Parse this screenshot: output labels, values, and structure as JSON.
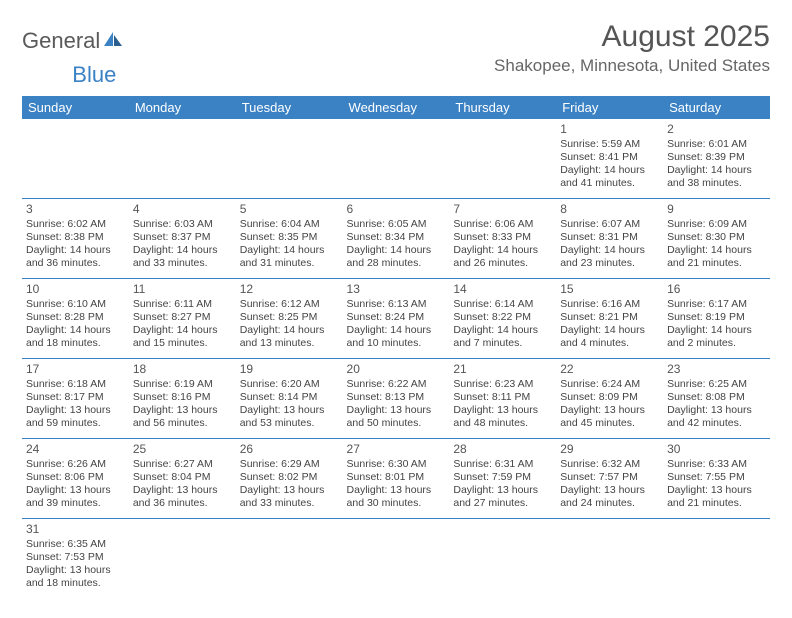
{
  "logo": {
    "text1": "General",
    "text2": "Blue"
  },
  "title": "August 2025",
  "location": "Shakopee, Minnesota, United States",
  "style": {
    "header_bg": "#3b82c4",
    "header_fg": "#ffffff",
    "border_color": "#3b82c4",
    "title_color": "#555555",
    "text_color": "#444444"
  },
  "weekdays": [
    "Sunday",
    "Monday",
    "Tuesday",
    "Wednesday",
    "Thursday",
    "Friday",
    "Saturday"
  ],
  "weeks": [
    [
      null,
      null,
      null,
      null,
      null,
      {
        "n": "1",
        "sr": "Sunrise: 5:59 AM",
        "ss": "Sunset: 8:41 PM",
        "d1": "Daylight: 14 hours",
        "d2": "and 41 minutes."
      },
      {
        "n": "2",
        "sr": "Sunrise: 6:01 AM",
        "ss": "Sunset: 8:39 PM",
        "d1": "Daylight: 14 hours",
        "d2": "and 38 minutes."
      }
    ],
    [
      {
        "n": "3",
        "sr": "Sunrise: 6:02 AM",
        "ss": "Sunset: 8:38 PM",
        "d1": "Daylight: 14 hours",
        "d2": "and 36 minutes."
      },
      {
        "n": "4",
        "sr": "Sunrise: 6:03 AM",
        "ss": "Sunset: 8:37 PM",
        "d1": "Daylight: 14 hours",
        "d2": "and 33 minutes."
      },
      {
        "n": "5",
        "sr": "Sunrise: 6:04 AM",
        "ss": "Sunset: 8:35 PM",
        "d1": "Daylight: 14 hours",
        "d2": "and 31 minutes."
      },
      {
        "n": "6",
        "sr": "Sunrise: 6:05 AM",
        "ss": "Sunset: 8:34 PM",
        "d1": "Daylight: 14 hours",
        "d2": "and 28 minutes."
      },
      {
        "n": "7",
        "sr": "Sunrise: 6:06 AM",
        "ss": "Sunset: 8:33 PM",
        "d1": "Daylight: 14 hours",
        "d2": "and 26 minutes."
      },
      {
        "n": "8",
        "sr": "Sunrise: 6:07 AM",
        "ss": "Sunset: 8:31 PM",
        "d1": "Daylight: 14 hours",
        "d2": "and 23 minutes."
      },
      {
        "n": "9",
        "sr": "Sunrise: 6:09 AM",
        "ss": "Sunset: 8:30 PM",
        "d1": "Daylight: 14 hours",
        "d2": "and 21 minutes."
      }
    ],
    [
      {
        "n": "10",
        "sr": "Sunrise: 6:10 AM",
        "ss": "Sunset: 8:28 PM",
        "d1": "Daylight: 14 hours",
        "d2": "and 18 minutes."
      },
      {
        "n": "11",
        "sr": "Sunrise: 6:11 AM",
        "ss": "Sunset: 8:27 PM",
        "d1": "Daylight: 14 hours",
        "d2": "and 15 minutes."
      },
      {
        "n": "12",
        "sr": "Sunrise: 6:12 AM",
        "ss": "Sunset: 8:25 PM",
        "d1": "Daylight: 14 hours",
        "d2": "and 13 minutes."
      },
      {
        "n": "13",
        "sr": "Sunrise: 6:13 AM",
        "ss": "Sunset: 8:24 PM",
        "d1": "Daylight: 14 hours",
        "d2": "and 10 minutes."
      },
      {
        "n": "14",
        "sr": "Sunrise: 6:14 AM",
        "ss": "Sunset: 8:22 PM",
        "d1": "Daylight: 14 hours",
        "d2": "and 7 minutes."
      },
      {
        "n": "15",
        "sr": "Sunrise: 6:16 AM",
        "ss": "Sunset: 8:21 PM",
        "d1": "Daylight: 14 hours",
        "d2": "and 4 minutes."
      },
      {
        "n": "16",
        "sr": "Sunrise: 6:17 AM",
        "ss": "Sunset: 8:19 PM",
        "d1": "Daylight: 14 hours",
        "d2": "and 2 minutes."
      }
    ],
    [
      {
        "n": "17",
        "sr": "Sunrise: 6:18 AM",
        "ss": "Sunset: 8:17 PM",
        "d1": "Daylight: 13 hours",
        "d2": "and 59 minutes."
      },
      {
        "n": "18",
        "sr": "Sunrise: 6:19 AM",
        "ss": "Sunset: 8:16 PM",
        "d1": "Daylight: 13 hours",
        "d2": "and 56 minutes."
      },
      {
        "n": "19",
        "sr": "Sunrise: 6:20 AM",
        "ss": "Sunset: 8:14 PM",
        "d1": "Daylight: 13 hours",
        "d2": "and 53 minutes."
      },
      {
        "n": "20",
        "sr": "Sunrise: 6:22 AM",
        "ss": "Sunset: 8:13 PM",
        "d1": "Daylight: 13 hours",
        "d2": "and 50 minutes."
      },
      {
        "n": "21",
        "sr": "Sunrise: 6:23 AM",
        "ss": "Sunset: 8:11 PM",
        "d1": "Daylight: 13 hours",
        "d2": "and 48 minutes."
      },
      {
        "n": "22",
        "sr": "Sunrise: 6:24 AM",
        "ss": "Sunset: 8:09 PM",
        "d1": "Daylight: 13 hours",
        "d2": "and 45 minutes."
      },
      {
        "n": "23",
        "sr": "Sunrise: 6:25 AM",
        "ss": "Sunset: 8:08 PM",
        "d1": "Daylight: 13 hours",
        "d2": "and 42 minutes."
      }
    ],
    [
      {
        "n": "24",
        "sr": "Sunrise: 6:26 AM",
        "ss": "Sunset: 8:06 PM",
        "d1": "Daylight: 13 hours",
        "d2": "and 39 minutes."
      },
      {
        "n": "25",
        "sr": "Sunrise: 6:27 AM",
        "ss": "Sunset: 8:04 PM",
        "d1": "Daylight: 13 hours",
        "d2": "and 36 minutes."
      },
      {
        "n": "26",
        "sr": "Sunrise: 6:29 AM",
        "ss": "Sunset: 8:02 PM",
        "d1": "Daylight: 13 hours",
        "d2": "and 33 minutes."
      },
      {
        "n": "27",
        "sr": "Sunrise: 6:30 AM",
        "ss": "Sunset: 8:01 PM",
        "d1": "Daylight: 13 hours",
        "d2": "and 30 minutes."
      },
      {
        "n": "28",
        "sr": "Sunrise: 6:31 AM",
        "ss": "Sunset: 7:59 PM",
        "d1": "Daylight: 13 hours",
        "d2": "and 27 minutes."
      },
      {
        "n": "29",
        "sr": "Sunrise: 6:32 AM",
        "ss": "Sunset: 7:57 PM",
        "d1": "Daylight: 13 hours",
        "d2": "and 24 minutes."
      },
      {
        "n": "30",
        "sr": "Sunrise: 6:33 AM",
        "ss": "Sunset: 7:55 PM",
        "d1": "Daylight: 13 hours",
        "d2": "and 21 minutes."
      }
    ],
    [
      {
        "n": "31",
        "sr": "Sunrise: 6:35 AM",
        "ss": "Sunset: 7:53 PM",
        "d1": "Daylight: 13 hours",
        "d2": "and 18 minutes."
      },
      null,
      null,
      null,
      null,
      null,
      null
    ]
  ]
}
